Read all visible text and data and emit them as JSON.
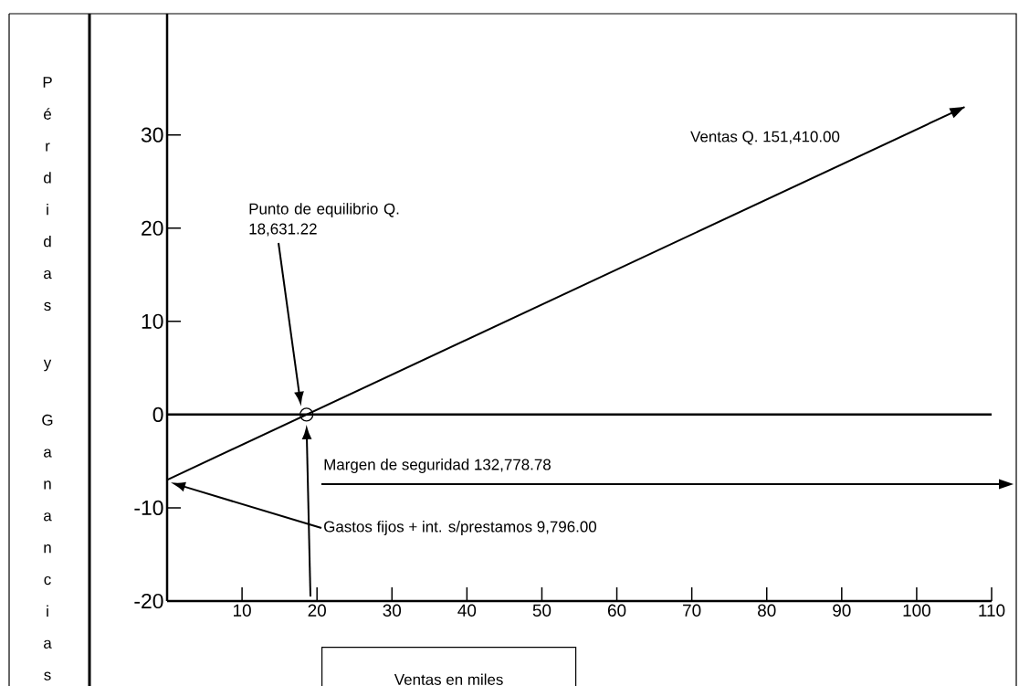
{
  "chart_data": {
    "type": "line",
    "xlabel": "Ventas en miles",
    "ylabel": "Pérdidas y Ganancias",
    "xlim": [
      0,
      110
    ],
    "ylim": [
      -20,
      43
    ],
    "xticks": [
      10,
      20,
      30,
      40,
      50,
      60,
      70,
      80,
      90,
      100,
      110
    ],
    "yticks": [
      -20,
      -10,
      0,
      10,
      20,
      30
    ],
    "series": [
      {
        "name": "Ventas Q. 151,410.00",
        "type": "line",
        "marker": "none",
        "color": "#000000",
        "x": [
          0,
          106.4
        ],
        "values": [
          -7,
          33
        ]
      },
      {
        "type": "scatter",
        "marker": "circle",
        "color": "#000000",
        "x": [
          18.6
        ],
        "values": [
          0
        ]
      }
    ],
    "ref_lines": [
      {
        "axis": "y",
        "value": 0,
        "color": "#000000"
      }
    ],
    "annotations": [
      "Punto de equilibrio Q. 18,631.22",
      "Margen de seguridad 132,778.78",
      "Gastos fijos + int. s/prestamos 9,796.00"
    ]
  }
}
